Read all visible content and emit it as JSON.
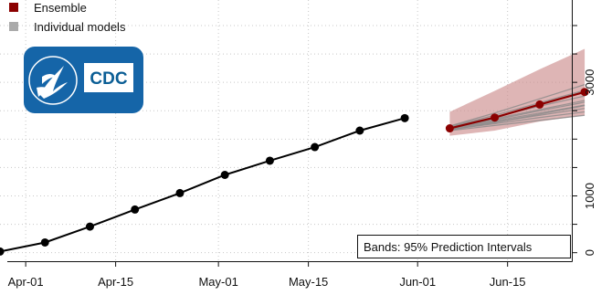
{
  "legend": {
    "ensemble_label": "Ensemble",
    "individual_label": "Individual models"
  },
  "logo": {
    "text": "CDC"
  },
  "note": "Bands: 95% Prediction Intervals",
  "colors": {
    "ensemble": "#8b0000",
    "band": "#cc8e8e",
    "individual": "#8a8a8a",
    "observed": "#000000",
    "logo_blue": "#1565a8"
  },
  "chart_data": {
    "type": "line",
    "title": "",
    "xlabel": "",
    "ylabel": "",
    "grid": true,
    "legend_position": "top-left",
    "x_ticks": [
      "Apr-01",
      "Apr-15",
      "May-01",
      "May-15",
      "Jun-01",
      "Jun-15"
    ],
    "x_tick_dates": [
      "2020-04-01",
      "2020-04-15",
      "2020-05-01",
      "2020-05-15",
      "2020-06-01",
      "2020-06-15"
    ],
    "xlim": [
      "2020-03-28",
      "2020-06-25"
    ],
    "y_ticks": [
      0,
      1000,
      3000
    ],
    "ylim": [
      -150,
      4450
    ],
    "series": [
      {
        "name": "",
        "dates": [
          "2020-03-28",
          "2020-04-04",
          "2020-04-11",
          "2020-04-18",
          "2020-04-25",
          "2020-05-02",
          "2020-05-09",
          "2020-05-16",
          "2020-05-23",
          "2020-05-30"
        ],
        "values": [
          20,
          180,
          460,
          760,
          1050,
          1370,
          1620,
          1860,
          2150,
          2370
        ]
      },
      {
        "name": "Ensemble",
        "dates": [
          "2020-06-06",
          "2020-06-13",
          "2020-06-20",
          "2020-06-27"
        ],
        "values": [
          2190,
          2380,
          2610,
          2830
        ],
        "lower": [
          2060,
          2150,
          2310,
          2420
        ],
        "upper": [
          2480,
          2850,
          3230,
          3590
        ]
      }
    ],
    "individual_models": [
      [
        2150,
        2240,
        2330,
        2420
      ],
      [
        2170,
        2270,
        2380,
        2480
      ],
      [
        2180,
        2300,
        2420,
        2540
      ],
      [
        2190,
        2320,
        2460,
        2600
      ],
      [
        2200,
        2360,
        2520,
        2680
      ],
      [
        2210,
        2390,
        2580,
        2760
      ],
      [
        2220,
        2420,
        2640,
        2860
      ],
      [
        2230,
        2460,
        2710,
        2960
      ],
      [
        2160,
        2290,
        2440,
        2590
      ],
      [
        2200,
        2340,
        2500,
        2650
      ]
    ]
  }
}
